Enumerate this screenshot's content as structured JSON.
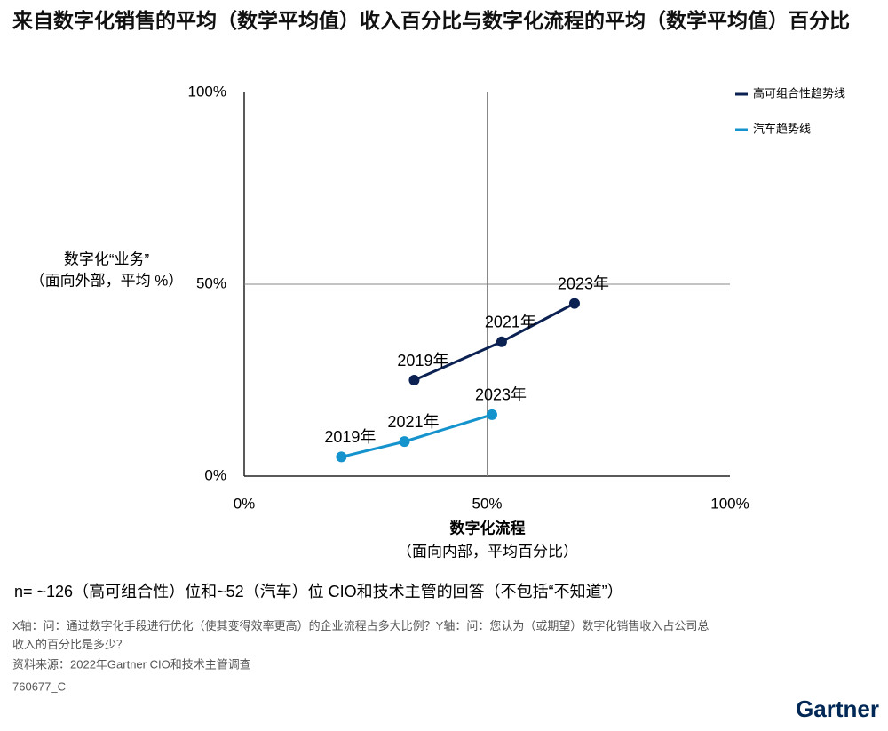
{
  "header": {
    "title": "来自数字化销售的平均（数学平均值）收入百分比与数字化流程的平均（数学平均值）百分比"
  },
  "chart_data": {
    "type": "line",
    "y_label": [
      "数字化“业务”",
      "（面向外部，平均 %）"
    ],
    "x_label": [
      "数字化流程",
      "（面向内部，平均百分比）"
    ],
    "xlim": [
      0,
      100
    ],
    "ylim": [
      0,
      100
    ],
    "xticks": [
      {
        "value": 0,
        "label": "0%"
      },
      {
        "value": 50,
        "label": "50%"
      },
      {
        "value": 100,
        "label": "100%"
      }
    ],
    "yticks": [
      {
        "value": 0,
        "label": "0%"
      },
      {
        "value": 50,
        "label": "50%"
      },
      {
        "value": 100,
        "label": "100%"
      }
    ],
    "legend": "upper right",
    "series": [
      {
        "name": "高可组合性趋势线",
        "color": "#0b2152",
        "x": [
          35,
          53,
          68
        ],
        "values": [
          25,
          35,
          45
        ],
        "labels": [
          "2019年",
          "2021年",
          "2023年"
        ]
      },
      {
        "name": "汽车趋势线",
        "color": "#1593cd",
        "x": [
          20,
          33,
          51
        ],
        "values": [
          5,
          9,
          16
        ],
        "labels": [
          "2019年",
          "2021年",
          "2023年"
        ]
      }
    ]
  },
  "footer": {
    "note": "n= ~126（高可组合性）位和~52（汽车）位 CIO和技术主管的回答（不包括“不知道”）",
    "question": "X轴：问：通过数字化手段进行优化（使其变得效率更高）的企业流程占多大比例？Y轴：问：您认为（或期望）数字化销售收入占公司总收入的百分比是多少？",
    "source": "资料来源：2022年Gartner CIO和技术主管调查",
    "code": "760677_C",
    "logo": "Gartner"
  }
}
